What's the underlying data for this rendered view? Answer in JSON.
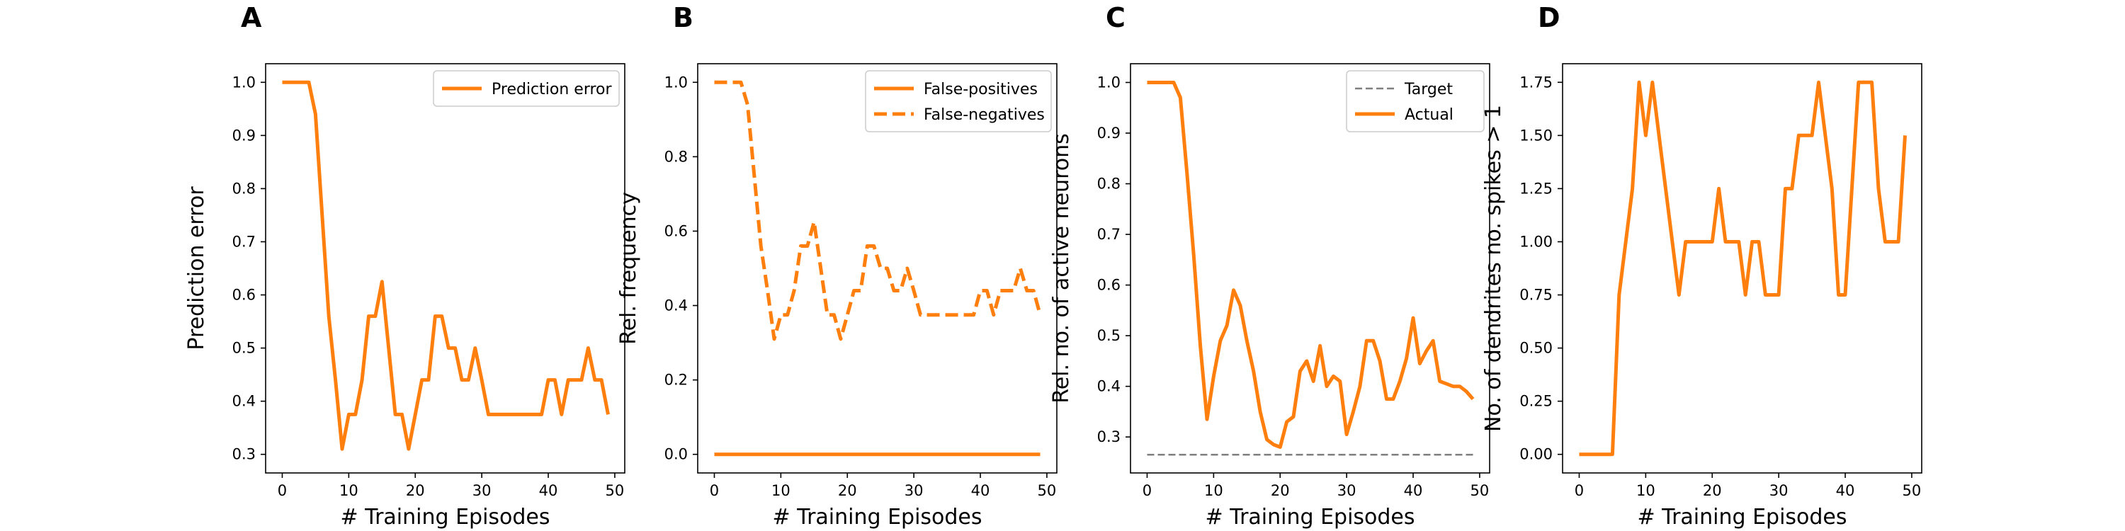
{
  "colors": {
    "actual": "#ff7f0e",
    "target": "#7f7f7f",
    "axis": "#000000"
  },
  "chart_data": [
    {
      "type": "line",
      "panel": "A",
      "xlabel": "# Training Episodes",
      "ylabel": "Prediction error",
      "xlim": [
        -2.5,
        51.5
      ],
      "ylim": [
        0.265,
        1.035
      ],
      "xticks": [
        0,
        10,
        20,
        30,
        40,
        50
      ],
      "yticks": [
        0.3,
        0.4,
        0.5,
        0.6,
        0.7,
        0.8,
        0.9,
        1.0
      ],
      "ytick_labels": [
        "0.3",
        "0.4",
        "0.5",
        "0.6",
        "0.7",
        "0.8",
        "0.9",
        "1.0"
      ],
      "grid": false,
      "legend": "upper right",
      "series": [
        {
          "name": "Prediction error",
          "style": "solid",
          "x": [
            0,
            1,
            2,
            3,
            4,
            5,
            6,
            7,
            8,
            9,
            10,
            11,
            12,
            13,
            14,
            15,
            16,
            17,
            18,
            19,
            20,
            21,
            22,
            23,
            24,
            25,
            26,
            27,
            28,
            29,
            30,
            31,
            32,
            33,
            34,
            35,
            36,
            37,
            38,
            39,
            40,
            41,
            42,
            43,
            44,
            45,
            46,
            47,
            48,
            49
          ],
          "y": [
            1.0,
            1.0,
            1.0,
            1.0,
            1.0,
            0.94,
            0.75,
            0.56,
            0.44,
            0.31,
            0.375,
            0.375,
            0.44,
            0.56,
            0.56,
            0.625,
            0.5,
            0.375,
            0.375,
            0.31,
            0.375,
            0.44,
            0.44,
            0.56,
            0.56,
            0.5,
            0.5,
            0.44,
            0.44,
            0.5,
            0.44,
            0.375,
            0.375,
            0.375,
            0.375,
            0.375,
            0.375,
            0.375,
            0.375,
            0.375,
            0.44,
            0.44,
            0.375,
            0.44,
            0.44,
            0.44,
            0.5,
            0.44,
            0.44,
            0.375
          ]
        }
      ]
    },
    {
      "type": "line",
      "panel": "B",
      "xlabel": "# Training Episodes",
      "ylabel": "Rel. frequency",
      "xlim": [
        -2.5,
        51.5
      ],
      "ylim": [
        -0.05,
        1.05
      ],
      "xticks": [
        0,
        10,
        20,
        30,
        40,
        50
      ],
      "yticks": [
        0.0,
        0.2,
        0.4,
        0.6,
        0.8,
        1.0
      ],
      "ytick_labels": [
        "0.0",
        "0.2",
        "0.4",
        "0.6",
        "0.8",
        "1.0"
      ],
      "grid": false,
      "legend": "upper right",
      "series": [
        {
          "name": "False-positives",
          "style": "solid",
          "x": [
            0,
            49
          ],
          "y": [
            0.0,
            0.0
          ]
        },
        {
          "name": "False-negatives",
          "style": "dashed",
          "x": [
            0,
            1,
            2,
            3,
            4,
            5,
            6,
            7,
            8,
            9,
            10,
            11,
            12,
            13,
            14,
            15,
            16,
            17,
            18,
            19,
            20,
            21,
            22,
            23,
            24,
            25,
            26,
            27,
            28,
            29,
            30,
            31,
            32,
            33,
            34,
            35,
            36,
            37,
            38,
            39,
            40,
            41,
            42,
            43,
            44,
            45,
            46,
            47,
            48,
            49
          ],
          "y": [
            1.0,
            1.0,
            1.0,
            1.0,
            1.0,
            0.94,
            0.75,
            0.56,
            0.44,
            0.31,
            0.375,
            0.375,
            0.44,
            0.56,
            0.56,
            0.625,
            0.5,
            0.375,
            0.375,
            0.31,
            0.375,
            0.44,
            0.44,
            0.56,
            0.56,
            0.5,
            0.5,
            0.44,
            0.44,
            0.5,
            0.44,
            0.375,
            0.375,
            0.375,
            0.375,
            0.375,
            0.375,
            0.375,
            0.375,
            0.375,
            0.44,
            0.44,
            0.375,
            0.44,
            0.44,
            0.44,
            0.5,
            0.44,
            0.44,
            0.375
          ]
        }
      ]
    },
    {
      "type": "line",
      "panel": "C",
      "xlabel": "# Training Episodes",
      "ylabel": "Rel. no. of active neurons",
      "xlim": [
        -2.5,
        51.5
      ],
      "ylim": [
        0.229,
        1.037
      ],
      "xticks": [
        0,
        10,
        20,
        30,
        40,
        50
      ],
      "yticks": [
        0.3,
        0.4,
        0.5,
        0.6,
        0.7,
        0.8,
        0.9,
        1.0
      ],
      "ytick_labels": [
        "0.3",
        "0.4",
        "0.5",
        "0.6",
        "0.7",
        "0.8",
        "0.9",
        "1.0"
      ],
      "grid": false,
      "legend": "upper right",
      "series": [
        {
          "name": "Target",
          "style": "dashed-thin",
          "x": [
            0,
            49
          ],
          "y": [
            0.265,
            0.265
          ]
        },
        {
          "name": "Actual",
          "style": "solid",
          "x": [
            0,
            1,
            2,
            3,
            4,
            5,
            6,
            7,
            8,
            9,
            10,
            11,
            12,
            13,
            14,
            15,
            16,
            17,
            18,
            19,
            20,
            21,
            22,
            23,
            24,
            25,
            26,
            27,
            28,
            29,
            30,
            31,
            32,
            33,
            34,
            35,
            36,
            37,
            38,
            39,
            40,
            41,
            42,
            43,
            44,
            45,
            46,
            47,
            48,
            49
          ],
          "y": [
            1.0,
            1.0,
            1.0,
            1.0,
            1.0,
            0.97,
            0.82,
            0.66,
            0.48,
            0.335,
            0.42,
            0.49,
            0.52,
            0.59,
            0.56,
            0.49,
            0.43,
            0.35,
            0.295,
            0.285,
            0.28,
            0.33,
            0.34,
            0.43,
            0.45,
            0.41,
            0.48,
            0.4,
            0.42,
            0.41,
            0.305,
            0.35,
            0.4,
            0.49,
            0.49,
            0.45,
            0.375,
            0.375,
            0.41,
            0.455,
            0.535,
            0.445,
            0.47,
            0.49,
            0.41,
            0.405,
            0.4,
            0.4,
            0.39,
            0.375
          ]
        }
      ]
    },
    {
      "type": "line",
      "panel": "D",
      "xlabel": "# Training Episodes",
      "ylabel": "No. of dendrites no. spikes > 1",
      "xlim": [
        -2.5,
        51.5
      ],
      "ylim": [
        -0.0875,
        1.8375
      ],
      "xticks": [
        0,
        10,
        20,
        30,
        40,
        50
      ],
      "yticks": [
        0.0,
        0.25,
        0.5,
        0.75,
        1.0,
        1.25,
        1.5,
        1.75
      ],
      "ytick_labels": [
        "0.00",
        "0.25",
        "0.50",
        "0.75",
        "1.00",
        "1.25",
        "1.50",
        "1.75"
      ],
      "grid": false,
      "legend": "none",
      "series": [
        {
          "style": "solid",
          "x": [
            0,
            1,
            2,
            3,
            4,
            5,
            6,
            7,
            8,
            9,
            10,
            11,
            12,
            13,
            14,
            15,
            16,
            17,
            18,
            19,
            20,
            21,
            22,
            23,
            24,
            25,
            26,
            27,
            28,
            29,
            30,
            31,
            32,
            33,
            34,
            35,
            36,
            37,
            38,
            39,
            40,
            41,
            42,
            43,
            44,
            45,
            46,
            47,
            48,
            49
          ],
          "y": [
            0.0,
            0.0,
            0.0,
            0.0,
            0.0,
            0.0,
            0.75,
            1.0,
            1.25,
            1.75,
            1.5,
            1.75,
            1.5,
            1.25,
            1.0,
            0.75,
            1.0,
            1.0,
            1.0,
            1.0,
            1.0,
            1.25,
            1.0,
            1.0,
            1.0,
            0.75,
            1.0,
            1.0,
            0.75,
            0.75,
            0.75,
            1.25,
            1.25,
            1.5,
            1.5,
            1.5,
            1.75,
            1.5,
            1.25,
            0.75,
            0.75,
            1.25,
            1.75,
            1.75,
            1.75,
            1.25,
            1.0,
            1.0,
            1.0,
            1.5
          ]
        }
      ]
    }
  ]
}
